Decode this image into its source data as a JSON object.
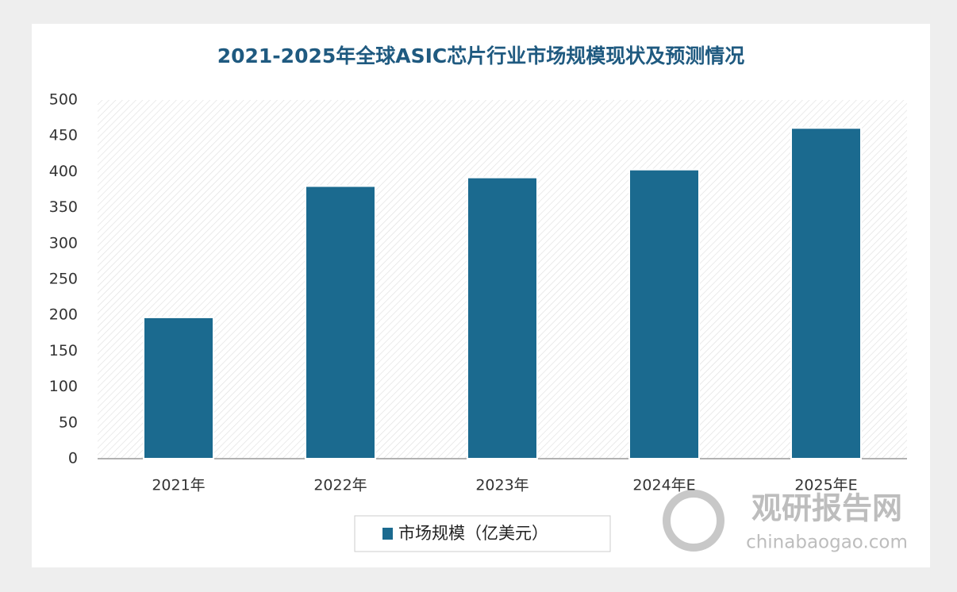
{
  "chart_data": {
    "type": "bar",
    "title": "2021-2025年全球ASIC芯片行业市场规模现状及预测情况",
    "categories": [
      "2021年",
      "2022年",
      "2023年",
      "2024年E",
      "2025年E"
    ],
    "series": [
      {
        "name": "市场规模（亿美元）",
        "color": "#1b6a8f",
        "values": [
          197,
          380,
          392,
          403,
          461
        ]
      }
    ],
    "ylim": [
      0,
      500
    ],
    "yticks": [
      0,
      50,
      100,
      150,
      200,
      250,
      300,
      350,
      400,
      450,
      500
    ],
    "grid": false
  },
  "watermark": {
    "name": "观研报告网",
    "url": "chinabaogao.com"
  }
}
